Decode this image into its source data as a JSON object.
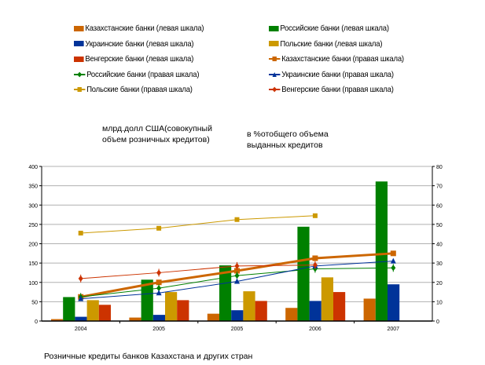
{
  "legend": [
    {
      "label": "Казахстанские банки (левая шкала)",
      "kind": "bar",
      "color": "#cc6600"
    },
    {
      "label": "Российские банки (левая шкала)",
      "kind": "bar",
      "color": "#008000"
    },
    {
      "label": "Украинские банки (левая шкала)",
      "kind": "bar",
      "color": "#003399"
    },
    {
      "label": "Польские банки (левая шкала)",
      "kind": "bar",
      "color": "#cc9900"
    },
    {
      "label": "Венгерские банки (левая шкала)",
      "kind": "bar",
      "color": "#cc3300"
    },
    {
      "label": "Казахстанские банки (правая шкала)",
      "kind": "line",
      "color": "#cc6600",
      "marker": "square"
    },
    {
      "label": "Российские банки (правая шкала)",
      "kind": "line",
      "color": "#008000",
      "marker": "diamond"
    },
    {
      "label": "Украинские банки (правая шкала)",
      "kind": "line",
      "color": "#003399",
      "marker": "triangle"
    },
    {
      "label": "Польские банки (правая шкала)",
      "kind": "line",
      "color": "#cc9900",
      "marker": "square"
    },
    {
      "label": "Венгерские банки (правая шкала)",
      "kind": "line",
      "color": "#cc3300",
      "marker": "diamond"
    }
  ],
  "left_axis_note": "млрд.долл США(совокупный объем розничных кредитов)",
  "left_axis_note_lines": [
    "млрд.долл США(совокупный",
    "объем розничных кредитов)"
  ],
  "right_axis_note_lines": [
    "в %отобщего объема",
    "выданных кредитов"
  ],
  "footer": "Розничные кредиты банков  Казахстана и других стран",
  "chart_data": {
    "type": "bar",
    "title": "Розничные кредиты банков  Казахстана и других стран",
    "categories": [
      "2004",
      "2005",
      "2005",
      "2006",
      "2007"
    ],
    "xlabel": "",
    "ylabel": "млрд.долл США(совокупный объем розничных кредитов)",
    "ylabel_right": "в %отобщего объема выданных кредитов",
    "ylim": [
      0,
      400
    ],
    "yticks": [
      0,
      50,
      100,
      150,
      200,
      250,
      300,
      350,
      400
    ],
    "ylim_right": [
      0,
      80
    ],
    "yticks_right": [
      0,
      10,
      20,
      30,
      40,
      50,
      60,
      70,
      80
    ],
    "grid": true,
    "legend_position": "top",
    "series": [
      {
        "name": "Казахстанские банки (левая шкала)",
        "type": "bar",
        "axis": "left",
        "color": "#cc6600",
        "values": [
          5,
          9,
          19,
          34,
          58
        ]
      },
      {
        "name": "Российские банки (левая шкала)",
        "type": "bar",
        "axis": "left",
        "color": "#008000",
        "values": [
          62,
          107,
          144,
          244,
          361
        ]
      },
      {
        "name": "Украинские банки (левая шкала)",
        "type": "bar",
        "axis": "left",
        "color": "#003399",
        "values": [
          11,
          16,
          28,
          52,
          95
        ]
      },
      {
        "name": "Польские банки (левая шкала)",
        "type": "bar",
        "axis": "left",
        "color": "#cc9900",
        "values": [
          54,
          75,
          77,
          113,
          null
        ]
      },
      {
        "name": "Венгерские банки (левая шкала)",
        "type": "bar",
        "axis": "left",
        "color": "#cc3300",
        "values": [
          42,
          54,
          52,
          75,
          null
        ]
      },
      {
        "name": "Казахстанские банки (правая шкала)",
        "type": "line",
        "axis": "right",
        "color": "#cc6600",
        "marker": "square",
        "width": 3,
        "values": [
          12.5,
          20,
          26,
          32.5,
          35
        ]
      },
      {
        "name": "Российские банки (правая шкала)",
        "type": "line",
        "axis": "right",
        "color": "#008000",
        "marker": "diamond",
        "width": 1,
        "values": [
          12.5,
          17,
          23.5,
          27,
          27.5
        ]
      },
      {
        "name": "Украинские банки (правая шкала)",
        "type": "line",
        "axis": "right",
        "color": "#003399",
        "marker": "triangle",
        "width": 1,
        "values": [
          11.5,
          14.5,
          20.5,
          28.5,
          31
        ]
      },
      {
        "name": "Польские банки (правая шкала)",
        "type": "line",
        "axis": "right",
        "color": "#cc9900",
        "marker": "square",
        "width": 1,
        "values": [
          45.5,
          48,
          52.5,
          54.5,
          null
        ]
      },
      {
        "name": "Венгерские банки (правая шкала)",
        "type": "line",
        "axis": "right",
        "color": "#cc3300",
        "marker": "diamond",
        "width": 1,
        "values": [
          22,
          25,
          28.5,
          29,
          null
        ]
      }
    ]
  }
}
